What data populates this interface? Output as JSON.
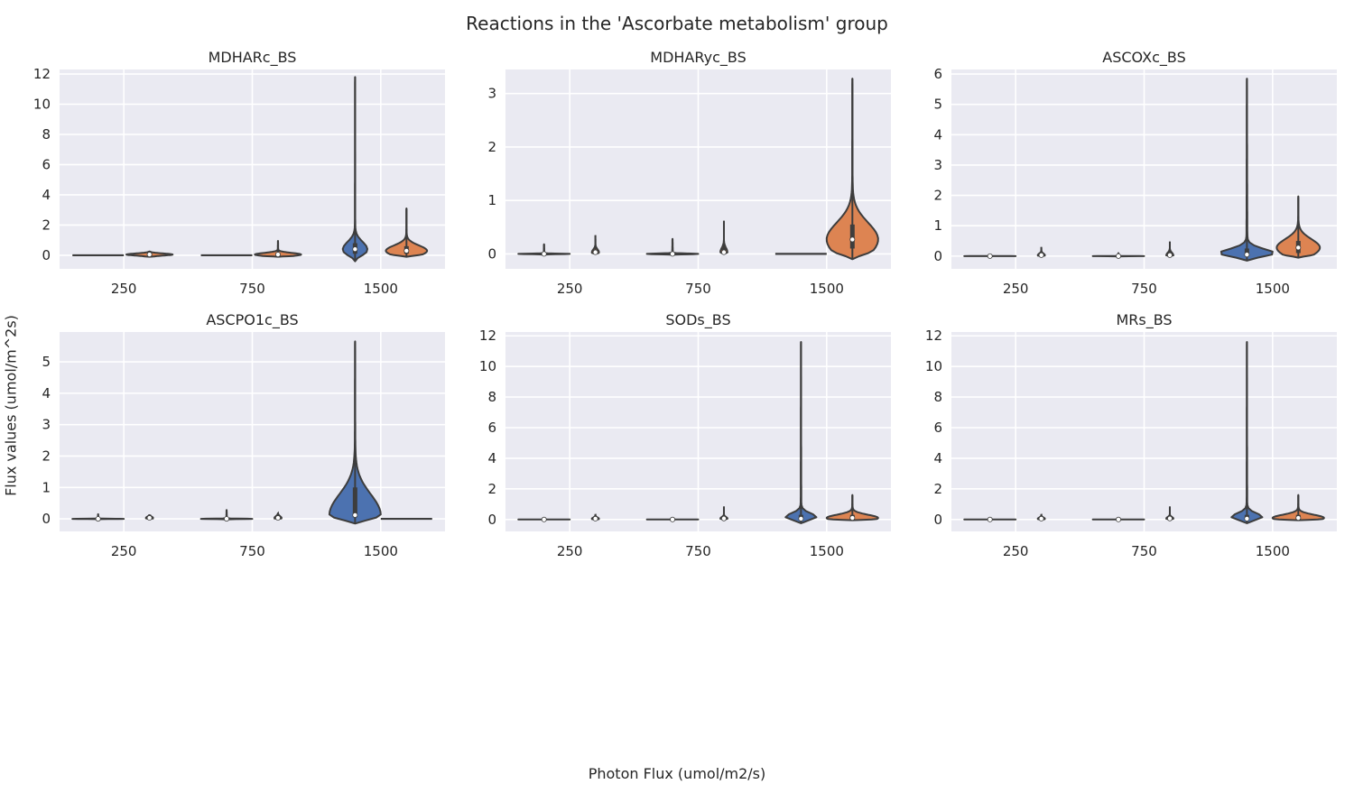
{
  "figure": {
    "title": "Reactions in the 'Ascorbate metabolism' group",
    "xlabel": "Photon Flux (umol/m2/s)",
    "ylabel": "Flux values (umol/m^2s)"
  },
  "colors": {
    "panel_bg": "#eaeaf2",
    "grid": "#ffffff",
    "edge": "#3d3d3d",
    "series_a": "#4c72b0",
    "series_b": "#dd8452",
    "text": "#262626"
  },
  "chart_data": [
    {
      "type": "violin",
      "title": "MDHARc_BS",
      "categories": [
        "250",
        "750",
        "1500"
      ],
      "yticks": [
        0,
        2,
        4,
        6,
        8,
        10,
        12
      ],
      "ylim": [
        -0.9,
        12.3
      ],
      "series": [
        {
          "values": [
            {
              "category": "250",
              "min": 0,
              "max": 0,
              "median": 0,
              "q1": 0,
              "q3": 0,
              "width": 0.5
            },
            {
              "category": "750",
              "min": 0,
              "max": 0,
              "median": 0,
              "q1": 0,
              "q3": 0,
              "width": 0.5
            },
            {
              "category": "1500",
              "min": -0.4,
              "max": 11.8,
              "median": 0.4,
              "q1": 0.1,
              "q3": 0.8,
              "width": 0.24
            }
          ]
        },
        {
          "values": [
            {
              "category": "250",
              "min": -0.1,
              "max": 0.25,
              "median": 0.05,
              "q1": 0,
              "q3": 0.1,
              "width": 0.45
            },
            {
              "category": "750",
              "min": -0.1,
              "max": 0.95,
              "median": 0.05,
              "q1": 0,
              "q3": 0.15,
              "width": 0.45
            },
            {
              "category": "1500",
              "min": -0.1,
              "max": 3.1,
              "median": 0.3,
              "q1": 0.1,
              "q3": 0.6,
              "width": 0.4
            }
          ]
        }
      ]
    },
    {
      "type": "violin",
      "title": "MDHARyc_BS",
      "categories": [
        "250",
        "750",
        "1500"
      ],
      "yticks": [
        0,
        1,
        2,
        3
      ],
      "ylim": [
        -0.28,
        3.45
      ],
      "series": [
        {
          "values": [
            {
              "category": "250",
              "min": -0.02,
              "max": 0.18,
              "median": 0,
              "q1": 0,
              "q3": 0,
              "width": 0.5
            },
            {
              "category": "750",
              "min": -0.02,
              "max": 0.28,
              "median": 0,
              "q1": 0,
              "q3": 0,
              "width": 0.5
            },
            {
              "category": "1500",
              "min": 0,
              "max": 0,
              "median": 0,
              "q1": 0,
              "q3": 0,
              "width": 0.5
            }
          ]
        },
        {
          "values": [
            {
              "category": "250",
              "min": 0,
              "max": 0.35,
              "median": 0.03,
              "q1": 0,
              "q3": 0.08,
              "width": 0.08
            },
            {
              "category": "750",
              "min": 0,
              "max": 0.62,
              "median": 0.03,
              "q1": 0,
              "q3": 0.12,
              "width": 0.08
            },
            {
              "category": "1500",
              "min": -0.1,
              "max": 3.28,
              "median": 0.27,
              "q1": 0.1,
              "q3": 0.55,
              "width": 0.5
            }
          ]
        }
      ]
    },
    {
      "type": "violin",
      "title": "ASCOXc_BS",
      "categories": [
        "250",
        "750",
        "1500"
      ],
      "yticks": [
        0,
        1,
        2,
        3,
        4,
        5,
        6
      ],
      "ylim": [
        -0.42,
        6.15
      ],
      "series": [
        {
          "values": [
            {
              "category": "250",
              "min": -0.02,
              "max": 0.02,
              "median": 0,
              "q1": 0,
              "q3": 0,
              "width": 0.5
            },
            {
              "category": "750",
              "min": -0.02,
              "max": 0.1,
              "median": 0,
              "q1": 0,
              "q3": 0,
              "width": 0.5
            },
            {
              "category": "1500",
              "min": -0.15,
              "max": 5.85,
              "median": 0.05,
              "q1": 0,
              "q3": 0.25,
              "width": 0.5
            }
          ]
        },
        {
          "values": [
            {
              "category": "250",
              "min": 0,
              "max": 0.3,
              "median": 0.03,
              "q1": 0,
              "q3": 0.08,
              "width": 0.08
            },
            {
              "category": "750",
              "min": 0,
              "max": 0.48,
              "median": 0.03,
              "q1": 0,
              "q3": 0.12,
              "width": 0.08
            },
            {
              "category": "1500",
              "min": -0.05,
              "max": 1.97,
              "median": 0.28,
              "q1": 0.1,
              "q3": 0.5,
              "width": 0.42
            }
          ]
        }
      ]
    },
    {
      "type": "violin",
      "title": "ASCPO1c_BS",
      "categories": [
        "250",
        "750",
        "1500"
      ],
      "yticks": [
        0,
        1,
        2,
        3,
        4,
        5
      ],
      "ylim": [
        -0.4,
        5.95
      ],
      "series": [
        {
          "values": [
            {
              "category": "250",
              "min": -0.02,
              "max": 0.15,
              "median": 0,
              "q1": 0,
              "q3": 0,
              "width": 0.5
            },
            {
              "category": "750",
              "min": -0.02,
              "max": 0.28,
              "median": 0,
              "q1": 0,
              "q3": 0,
              "width": 0.5
            },
            {
              "category": "1500",
              "min": -0.15,
              "max": 5.65,
              "median": 0.12,
              "q1": 0.05,
              "q3": 1.0,
              "width": 0.5
            }
          ]
        },
        {
          "values": [
            {
              "category": "250",
              "min": 0,
              "max": 0.12,
              "median": 0.03,
              "q1": 0,
              "q3": 0.06,
              "width": 0.08
            },
            {
              "category": "750",
              "min": 0,
              "max": 0.18,
              "median": 0.03,
              "q1": 0,
              "q3": 0.08,
              "width": 0.08
            },
            {
              "category": "1500",
              "min": 0,
              "max": 0,
              "median": 0,
              "q1": 0,
              "q3": 0,
              "width": 0.5
            }
          ]
        }
      ]
    },
    {
      "type": "violin",
      "title": "SODs_BS",
      "categories": [
        "250",
        "750",
        "1500"
      ],
      "yticks": [
        0,
        2,
        4,
        6,
        8,
        10,
        12
      ],
      "ylim": [
        -0.78,
        12.25
      ],
      "series": [
        {
          "values": [
            {
              "category": "250",
              "min": -0.02,
              "max": 0.02,
              "median": 0,
              "q1": 0,
              "q3": 0,
              "width": 0.5
            },
            {
              "category": "750",
              "min": -0.02,
              "max": 0.02,
              "median": 0,
              "q1": 0,
              "q3": 0,
              "width": 0.5
            },
            {
              "category": "1500",
              "min": -0.25,
              "max": 11.6,
              "median": 0.05,
              "q1": 0,
              "q3": 0.3,
              "width": 0.3
            }
          ]
        },
        {
          "values": [
            {
              "category": "250",
              "min": 0,
              "max": 0.35,
              "median": 0.05,
              "q1": 0,
              "q3": 0.12,
              "width": 0.08
            },
            {
              "category": "750",
              "min": 0,
              "max": 0.85,
              "median": 0.06,
              "q1": 0,
              "q3": 0.15,
              "width": 0.08
            },
            {
              "category": "1500",
              "min": -0.05,
              "max": 1.6,
              "median": 0.1,
              "q1": 0,
              "q3": 0.3,
              "width": 0.5
            }
          ]
        }
      ]
    },
    {
      "type": "violin",
      "title": "MRs_BS",
      "categories": [
        "250",
        "750",
        "1500"
      ],
      "yticks": [
        0,
        2,
        4,
        6,
        8,
        10,
        12
      ],
      "ylim": [
        -0.78,
        12.25
      ],
      "series": [
        {
          "values": [
            {
              "category": "250",
              "min": -0.02,
              "max": 0.02,
              "median": 0,
              "q1": 0,
              "q3": 0,
              "width": 0.5
            },
            {
              "category": "750",
              "min": -0.02,
              "max": 0.02,
              "median": 0,
              "q1": 0,
              "q3": 0,
              "width": 0.5
            },
            {
              "category": "1500",
              "min": -0.25,
              "max": 11.6,
              "median": 0.05,
              "q1": 0,
              "q3": 0.3,
              "width": 0.3
            }
          ]
        },
        {
          "values": [
            {
              "category": "250",
              "min": 0,
              "max": 0.35,
              "median": 0.05,
              "q1": 0,
              "q3": 0.12,
              "width": 0.08
            },
            {
              "category": "750",
              "min": 0,
              "max": 0.85,
              "median": 0.06,
              "q1": 0,
              "q3": 0.15,
              "width": 0.08
            },
            {
              "category": "1500",
              "min": -0.05,
              "max": 1.6,
              "median": 0.1,
              "q1": 0,
              "q3": 0.3,
              "width": 0.5
            }
          ]
        }
      ]
    }
  ]
}
